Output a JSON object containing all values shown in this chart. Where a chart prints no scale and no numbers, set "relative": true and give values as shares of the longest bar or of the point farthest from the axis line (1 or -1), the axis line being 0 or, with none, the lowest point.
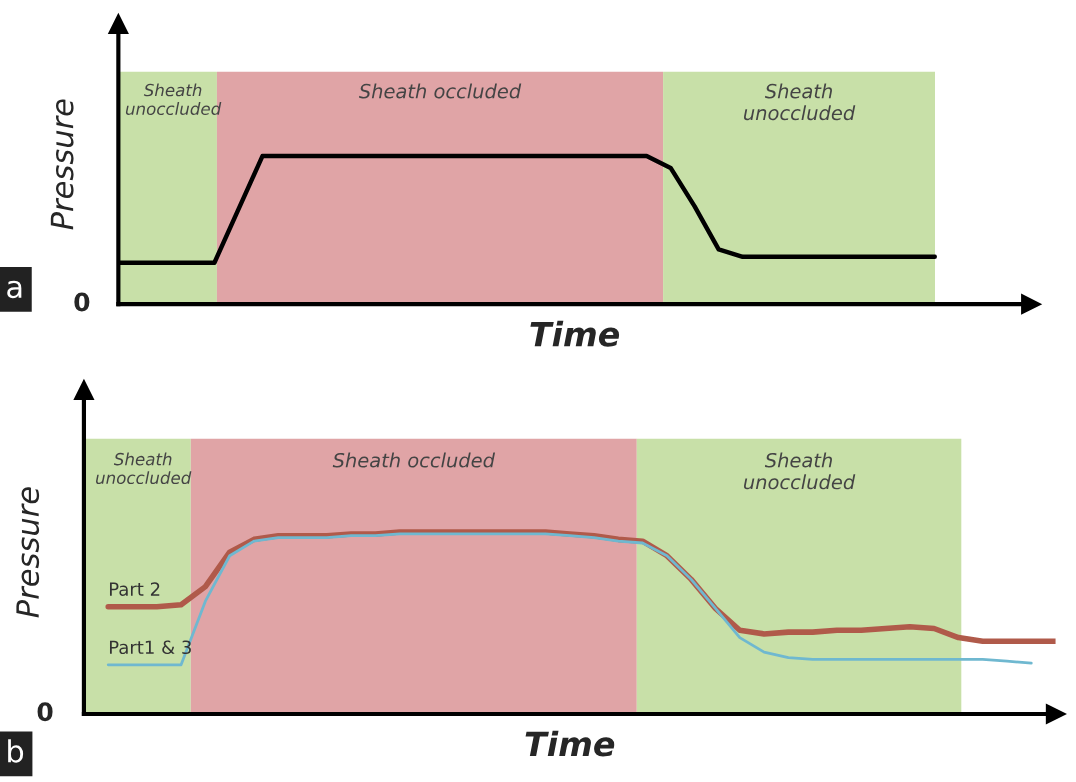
{
  "chart_data": [
    {
      "type": "line",
      "relative": true,
      "xlabel": "Time",
      "ylabel": "Pressure",
      "annotations": [
        "0",
        "a",
        "Sheath unoccluded",
        "Sheath occluded",
        "Sheath unoccluded"
      ],
      "categories": [
        null,
        null,
        null,
        null,
        null,
        null,
        null,
        null,
        null,
        null,
        null,
        null,
        null,
        null,
        null,
        null,
        null,
        null,
        null,
        null,
        null,
        null,
        null,
        null,
        null,
        null,
        null,
        null,
        null,
        null,
        null,
        null,
        null,
        null,
        null,
        null,
        null,
        null,
        null
      ],
      "series": [
        {
          "color": "#000000",
          "values": [
            0.28,
            0.28,
            0.28,
            0.28,
            0.28,
            0.64,
            1.0,
            1.0,
            1.0,
            1.0,
            1.0,
            1.0,
            1.0,
            1.0,
            1.0,
            1.0,
            1.0,
            1.0,
            1.0,
            1.0,
            1.0,
            1.0,
            1.0,
            0.92,
            0.66,
            0.37,
            0.32,
            0.32,
            0.32,
            0.32,
            0.32,
            0.32,
            0.32,
            0.32,
            0.32,
            null,
            null,
            null,
            null
          ]
        }
      ]
    },
    {
      "type": "line",
      "relative": true,
      "xlabel": "Time",
      "ylabel": "Pressure",
      "annotations": [
        "0",
        "b",
        "Sheath unoccluded",
        "Sheath occluded",
        "Sheath unoccluded"
      ],
      "categories": [
        null,
        null,
        null,
        null,
        null,
        null,
        null,
        null,
        null,
        null,
        null,
        null,
        null,
        null,
        null,
        null,
        null,
        null,
        null,
        null,
        null,
        null,
        null,
        null,
        null,
        null,
        null,
        null,
        null,
        null,
        null,
        null,
        null,
        null,
        null,
        null,
        null,
        null,
        null,
        null,
        null
      ],
      "series": [
        {
          "name": "Part 2",
          "color": "#b05a4a",
          "values": [
            null,
            0.59,
            0.59,
            0.59,
            0.6,
            0.7,
            0.89,
            0.96,
            0.98,
            0.98,
            0.98,
            0.99,
            0.99,
            1.0,
            1.0,
            1.0,
            1.0,
            1.0,
            1.0,
            1.0,
            0.99,
            0.98,
            0.96,
            0.95,
            0.87,
            0.74,
            0.58,
            0.46,
            0.44,
            0.45,
            0.45,
            0.46,
            0.46,
            0.47,
            0.48,
            0.47,
            0.42,
            0.4,
            0.4,
            0.4,
            0.4
          ]
        },
        {
          "name": "Part1 & 3",
          "color": "#6fb8d0",
          "values": [
            null,
            0.27,
            0.27,
            0.27,
            0.27,
            0.62,
            0.87,
            0.95,
            0.97,
            0.97,
            0.97,
            0.98,
            0.98,
            0.99,
            0.99,
            0.99,
            0.99,
            0.99,
            0.99,
            0.99,
            0.98,
            0.97,
            0.95,
            0.94,
            0.87,
            0.74,
            0.58,
            0.42,
            0.34,
            0.31,
            0.3,
            0.3,
            0.3,
            0.3,
            0.3,
            0.3,
            0.3,
            0.3,
            0.29,
            0.28,
            null
          ]
        }
      ]
    }
  ]
}
